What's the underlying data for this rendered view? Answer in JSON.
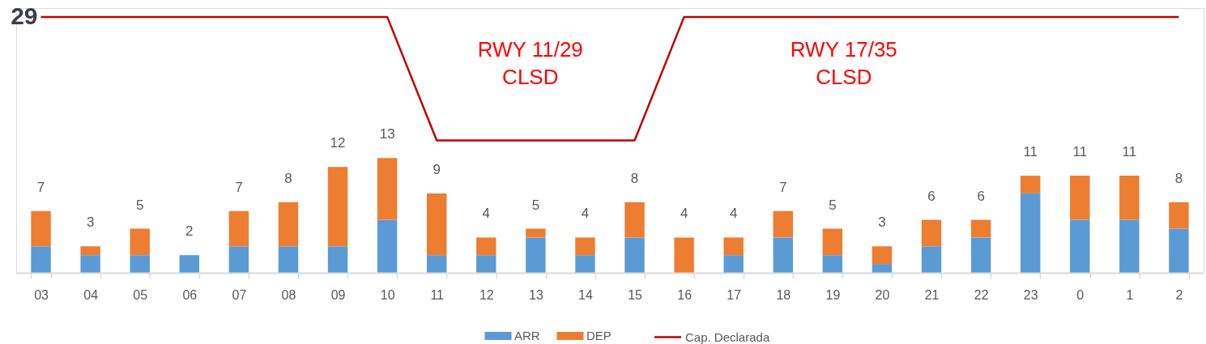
{
  "chart_data": {
    "type": "bar",
    "stacked": true,
    "totals": [
      "7",
      "3",
      "5",
      "2",
      "7",
      "8",
      "12",
      "13",
      "9",
      "4",
      "5",
      "4",
      "8",
      "4",
      "4",
      "7",
      "5",
      "3",
      "6",
      "6",
      "11",
      "11",
      "11",
      "8"
    ],
    "series": [
      {
        "name": "ARR",
        "color": "#5b9bd5",
        "values": [
          3,
          2,
          2,
          2,
          3,
          3,
          3,
          6,
          2,
          2,
          4,
          2,
          4,
          0,
          2,
          4,
          2,
          1,
          3,
          4,
          9,
          6,
          6,
          5
        ]
      },
      {
        "name": "DEP",
        "color": "#ed7d31",
        "values": [
          4,
          1,
          3,
          0,
          4,
          5,
          9,
          7,
          7,
          2,
          1,
          2,
          4,
          4,
          2,
          3,
          3,
          2,
          3,
          2,
          2,
          5,
          5,
          3
        ]
      },
      {
        "name": "Cap. Declarada",
        "type": "line",
        "color": "#c00000",
        "values": [
          29,
          29,
          29,
          29,
          29,
          29,
          29,
          29,
          15,
          15,
          15,
          15,
          15,
          29,
          29,
          29,
          29,
          29,
          29,
          29,
          29,
          29,
          29,
          29
        ],
        "value_labels": [
          "29",
          null,
          null,
          null,
          null,
          null,
          null,
          null,
          null,
          null,
          null,
          null,
          null,
          null,
          null,
          null,
          null,
          null,
          null,
          null,
          null,
          null,
          null,
          null
        ]
      }
    ],
    "categories": [
      "03",
      "04",
      "05",
      "06",
      "07",
      "08",
      "09",
      "10",
      "11",
      "12",
      "13",
      "14",
      "15",
      "16",
      "17",
      "18",
      "19",
      "20",
      "21",
      "22",
      "23",
      "0",
      "1",
      "2"
    ],
    "annotations": [
      "RWY 11/29\nCLSD",
      "RWY 17/35\nCLSD"
    ],
    "ylim": [
      0,
      30
    ],
    "tick_labels": "x",
    "grid": false,
    "legend": "bottom",
    "marker": "none",
    "line_style": "solid"
  }
}
